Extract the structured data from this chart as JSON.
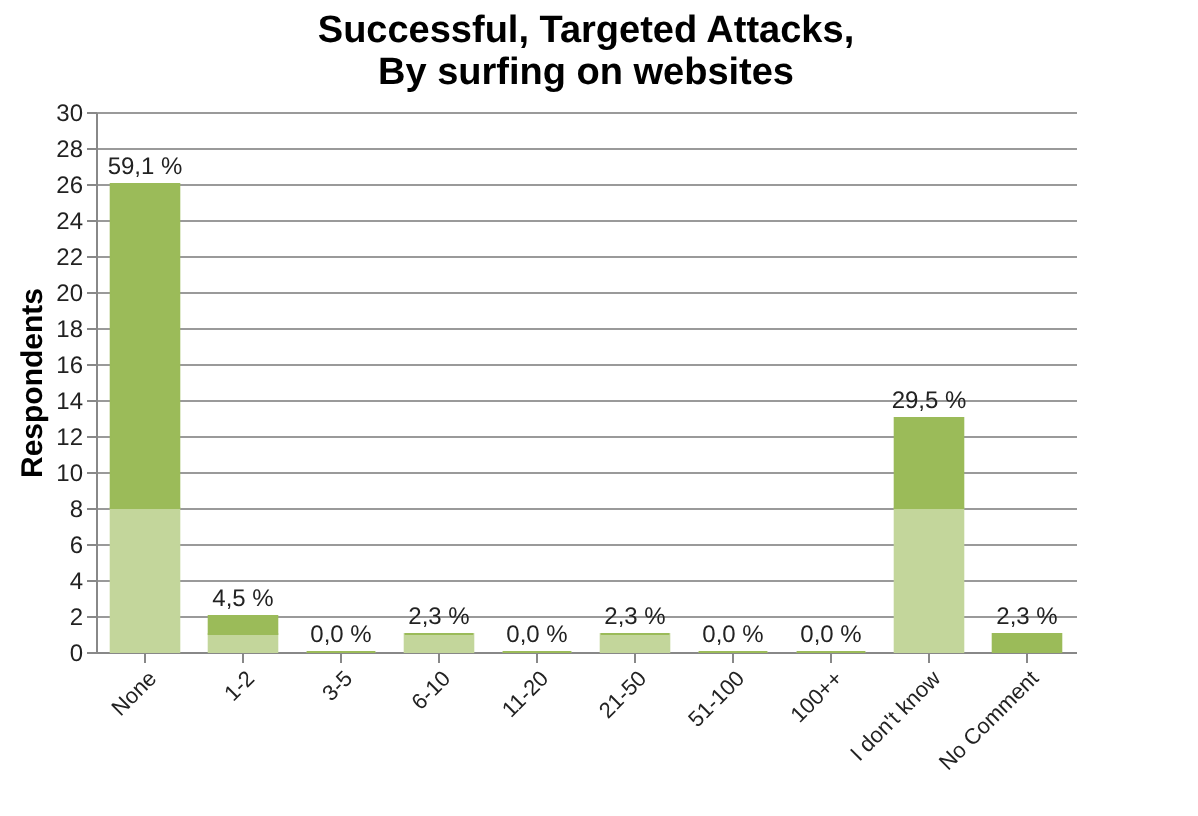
{
  "chart_data": {
    "type": "bar",
    "stacked": true,
    "title": "Successful, Targeted Attacks,\nBy surfing on websites",
    "ylabel": "Respondents",
    "categories": [
      "None",
      "1-2",
      "3-5",
      "6-10",
      "11-20",
      "21-50",
      "51-100",
      "100++",
      "I don't know",
      "No Comment"
    ],
    "series": [
      {
        "color": "#c3d69b",
        "values": [
          8,
          1,
          0,
          1,
          0,
          1,
          0,
          0,
          8,
          0
        ]
      },
      {
        "color": "#9bbb59",
        "values": [
          18,
          1,
          0,
          0,
          0,
          0,
          0,
          0,
          5,
          1
        ]
      }
    ],
    "annotations": [
      {
        "text": "59,1 %",
        "x": "None",
        "y": 26
      },
      {
        "text": "4,5 %",
        "x": "1-2",
        "y": 2
      },
      {
        "text": "0,0 %",
        "x": "3-5",
        "y": 0
      },
      {
        "text": "2,3 %",
        "x": "6-10",
        "y": 1
      },
      {
        "text": "0,0 %",
        "x": "11-20",
        "y": 0
      },
      {
        "text": "2,3 %",
        "x": "21-50",
        "y": 1
      },
      {
        "text": "0,0 %",
        "x": "51-100",
        "y": 0
      },
      {
        "text": "0,0 %",
        "x": "100++",
        "y": 0
      },
      {
        "text": "29,5 %",
        "x": "I don't know",
        "y": 13
      },
      {
        "text": "2,3 %",
        "x": "No Comment",
        "y": 1
      }
    ],
    "ylim": [
      0,
      30
    ],
    "yticks": [
      0,
      2,
      4,
      6,
      8,
      10,
      12,
      14,
      16,
      18,
      20,
      22,
      24,
      26,
      28,
      30
    ],
    "grid": "y",
    "legend": false
  }
}
